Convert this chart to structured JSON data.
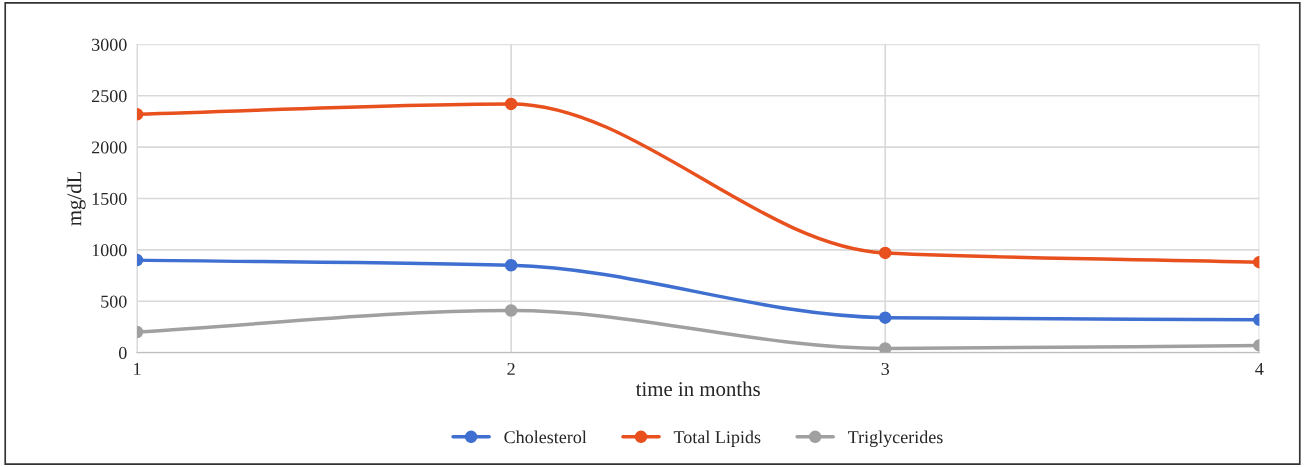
{
  "chart_data": {
    "type": "line",
    "xlabel": "time in months",
    "ylabel": "mg/dL",
    "x": [
      1,
      2,
      3,
      4
    ],
    "xlim": [
      1,
      4
    ],
    "xticks": [
      1,
      2,
      3,
      4
    ],
    "ylim": [
      0,
      3000
    ],
    "yticks": [
      0,
      500,
      1000,
      1500,
      2000,
      2500,
      3000
    ],
    "series": [
      {
        "name": "Cholesterol",
        "color": "#3f6fd0",
        "values": [
          900,
          850,
          340,
          320
        ]
      },
      {
        "name": "Total Lipids",
        "color": "#e8501e",
        "values": [
          2320,
          2420,
          970,
          880
        ]
      },
      {
        "name": "Triglycerides",
        "color": "#a0a0a0",
        "values": [
          200,
          410,
          40,
          70
        ]
      }
    ],
    "grid": true,
    "legend": "bottom",
    "marker": "circle",
    "line_style": "solid"
  }
}
